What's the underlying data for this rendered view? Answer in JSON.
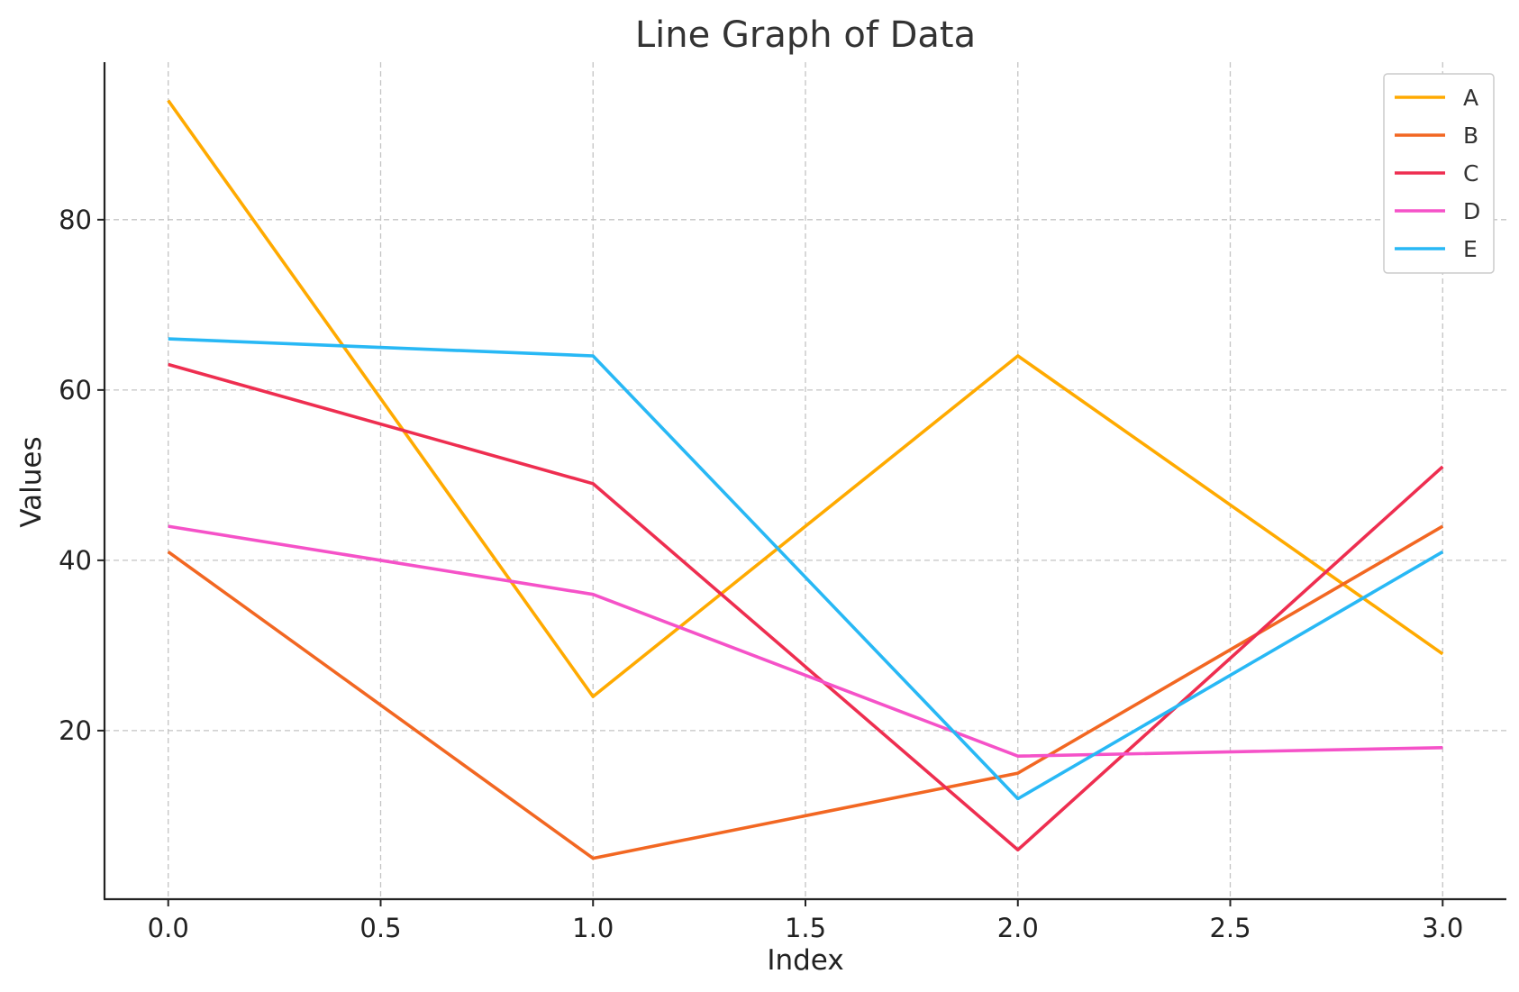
{
  "chart_data": {
    "type": "line",
    "title": "Line Graph of Data",
    "xlabel": "Index",
    "ylabel": "Values",
    "x": [
      0,
      1,
      2,
      3
    ],
    "xlim": [
      -0.15,
      3.15
    ],
    "ylim": [
      0.2,
      98.5
    ],
    "xticks": [
      0.0,
      0.5,
      1.0,
      1.5,
      2.0,
      2.5,
      3.0
    ],
    "xtick_labels": [
      "0.0",
      "0.5",
      "1.0",
      "1.5",
      "2.0",
      "2.5",
      "3.0"
    ],
    "yticks": [
      20,
      40,
      60,
      80
    ],
    "ytick_labels": [
      "20",
      "40",
      "60",
      "80"
    ],
    "grid": true,
    "legend_position": "top-right",
    "series": [
      {
        "name": "A",
        "color": "#FFAA00",
        "values": [
          94,
          24,
          64,
          29
        ]
      },
      {
        "name": "B",
        "color": "#F26722",
        "values": [
          41,
          5,
          15,
          44
        ]
      },
      {
        "name": "C",
        "color": "#EE2E50",
        "values": [
          63,
          49,
          6,
          51
        ]
      },
      {
        "name": "D",
        "color": "#F552C8",
        "values": [
          44,
          36,
          17,
          18
        ]
      },
      {
        "name": "E",
        "color": "#28B8F5",
        "values": [
          66,
          64,
          12,
          41
        ]
      }
    ]
  }
}
